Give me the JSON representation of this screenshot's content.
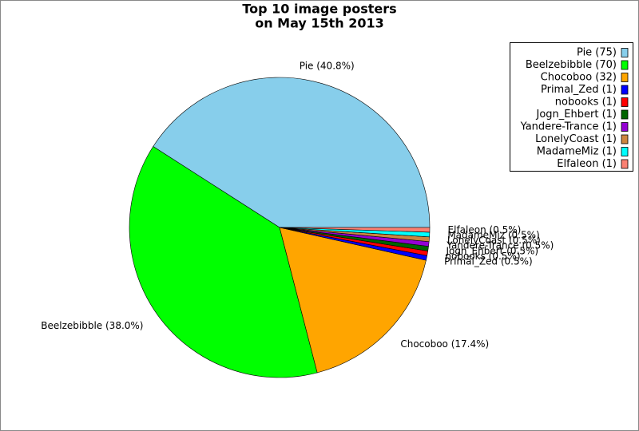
{
  "chart_data": {
    "type": "pie",
    "title": [
      "Top 10 image posters",
      "on May 15th 2013"
    ],
    "categories": [
      "Pie",
      "Beelzebibble",
      "Chocoboo",
      "Primal_Zed",
      "nobooks",
      "Jogn_Ehbert",
      "Yandere-Trance",
      "LonelyCoast",
      "MadameMiz",
      "Elfaleon"
    ],
    "values": [
      40.8,
      38.0,
      17.4,
      0.5,
      0.5,
      0.5,
      0.5,
      0.5,
      0.5,
      0.5
    ],
    "value_labels": [
      "Pie (40.8%)",
      "Beelzebibble (38.0%)",
      "Chocoboo (17.4%)",
      "Primal_Zed (0.5%)",
      "nobooks (0.5%)",
      "Jogn_Ehbert (0.5%)",
      "Yandere-Trance (0.5%)",
      "LonelyCoast (0.5%)",
      "MadameMiz (0.5%)",
      "Elfaleon (0.5%)"
    ],
    "legend_labels": [
      "Pie (75)",
      "Beelzebibble (70)",
      "Chocoboo (32)",
      "Primal_Zed (1)",
      "nobooks (1)",
      "Jogn_Ehbert (1)",
      "Yandere-Trance (1)",
      "LonelyCoast (1)",
      "MadameMiz (1)",
      "Elfaleon (1)"
    ],
    "colors": [
      "#87ceeb",
      "#00ff00",
      "#ffa500",
      "#0000ff",
      "#ff0000",
      "#006400",
      "#9400d3",
      "#cd853f",
      "#00ffff",
      "#fa8072"
    ],
    "legend": "upper right"
  }
}
